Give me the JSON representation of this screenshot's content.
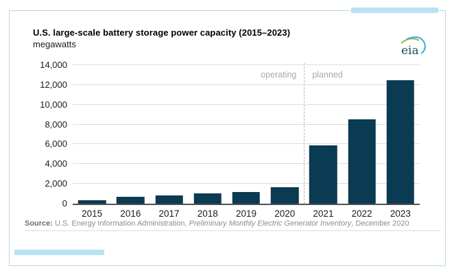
{
  "header": {
    "logo_text": "eia"
  },
  "chart_data": {
    "type": "bar",
    "title": "U.S. large-scale battery storage power capacity (2015–2023)",
    "ylabel_unit": "megawatts",
    "categories": [
      "2015",
      "2016",
      "2017",
      "2018",
      "2019",
      "2020",
      "2021",
      "2022",
      "2023"
    ],
    "values": [
      350,
      700,
      850,
      1050,
      1200,
      1650,
      5900,
      8500,
      12500
    ],
    "ylim": [
      0,
      14000
    ],
    "yticks": [
      {
        "value": 0,
        "label": "0"
      },
      {
        "value": 2000,
        "label": "2,000"
      },
      {
        "value": 4000,
        "label": "4,000"
      },
      {
        "value": 6000,
        "label": "6,000"
      },
      {
        "value": 8000,
        "label": "8,000"
      },
      {
        "value": 10000,
        "label": "10,000"
      },
      {
        "value": 12000,
        "label": "12,000"
      },
      {
        "value": 14000,
        "label": "14,000"
      }
    ],
    "bar_color": "#0b3a53",
    "grid": true,
    "legend_position": "none",
    "zones": [
      "operating",
      "planned"
    ],
    "divider_after_index": 5
  },
  "footer": {
    "prefix": "Source:",
    "text1": " U.S. Energy Information Administration, ",
    "italic": "Preliminary Monthly Electric Generator Inventory",
    "text2": ", December 2020"
  }
}
